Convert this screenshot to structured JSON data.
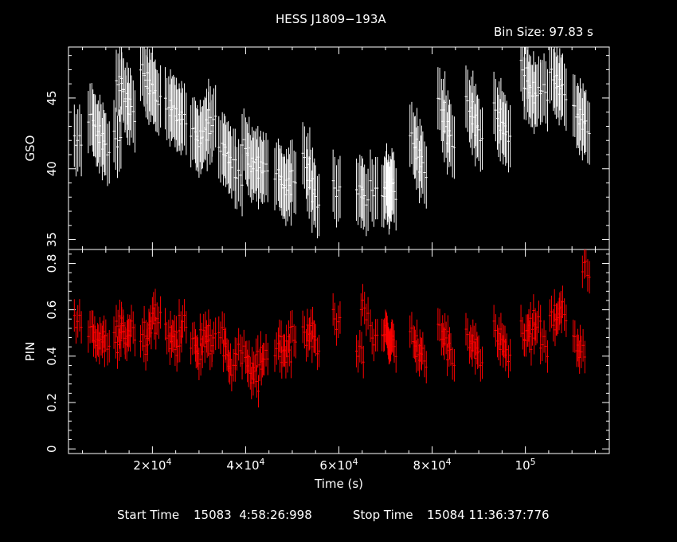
{
  "title": "HESS J1809−193A",
  "bin_size": "Bin Size: 97.83 s",
  "footer": {
    "start_label": "Start Time",
    "start_value": "15083  4:58:26:998",
    "stop_label": "Stop Time",
    "stop_value": "15084 11:36:37:776"
  },
  "colors": {
    "background": "#000000",
    "axes": "#ffffff",
    "gso": "#ffffff",
    "pin": "#ff0000"
  },
  "chart_data": [
    {
      "type": "scatter",
      "panel": "top",
      "ylabel": "GSO",
      "xlim": [
        2000,
        118000
      ],
      "ylim": [
        34.3,
        48.6
      ],
      "yticks": [
        35,
        40,
        45
      ],
      "grid": false,
      "series": [
        {
          "x": [
            4000,
            7000,
            8000,
            9000,
            10000,
            12500,
            13000,
            13800,
            14500,
            15500,
            18200,
            19000,
            20000,
            21000,
            23500,
            24500,
            25500,
            26500,
            29000,
            30000,
            31000,
            32000,
            32800,
            35000,
            36000,
            37000,
            38500,
            40000,
            41000,
            42000,
            43000,
            44000,
            47000,
            48000,
            49000,
            50000,
            53000,
            54000,
            55000,
            59500,
            64500,
            65500,
            67500,
            70000,
            70500,
            71000,
            71500,
            76000,
            77000,
            78000,
            82000,
            83000,
            84000,
            88000,
            89000,
            90000,
            94000,
            95000,
            96000,
            99800,
            100500,
            101500,
            102500,
            104000,
            106000,
            107000,
            108000,
            111000,
            112000,
            113000
          ],
          "y": [
            42.0,
            43.5,
            42.8,
            42.2,
            41.5,
            42.0,
            46.2,
            45.5,
            44.8,
            44.0,
            46.8,
            46.0,
            45.5,
            45.0,
            44.5,
            44.0,
            43.8,
            43.5,
            42.5,
            42.0,
            42.5,
            43.0,
            43.5,
            41.5,
            41.0,
            40.5,
            39.5,
            41.5,
            40.5,
            40.0,
            40.3,
            40.0,
            39.5,
            39.0,
            38.5,
            39.5,
            40.5,
            39.0,
            37.8,
            38.5,
            38.5,
            38.0,
            38.5,
            38.2,
            38.5,
            39.0,
            38.5,
            42.0,
            41.0,
            40.0,
            44.5,
            43.0,
            42.0,
            44.5,
            43.5,
            42.5,
            44.0,
            43.0,
            42.5,
            47.0,
            45.8,
            45.2,
            45.5,
            45.5,
            46.5,
            46.0,
            45.5,
            44.0,
            43.5,
            43.0
          ]
        }
      ]
    },
    {
      "type": "scatter",
      "panel": "bottom",
      "ylabel": "PIN",
      "xlabel": "Time (s)",
      "xlim": [
        2000,
        118000
      ],
      "ylim": [
        -0.02,
        0.86
      ],
      "yticks": [
        "0",
        "0.2",
        "0.4",
        "0.6",
        "0.8"
      ],
      "xticks": [
        {
          "value": 20000,
          "mantissa": "2×10",
          "exp": "4"
        },
        {
          "value": 40000,
          "mantissa": "4×10",
          "exp": "4"
        },
        {
          "value": 60000,
          "mantissa": "6×10",
          "exp": "4"
        },
        {
          "value": 80000,
          "mantissa": "8×10",
          "exp": "4"
        },
        {
          "value": 100000,
          "mantissa": "10",
          "exp": "5"
        }
      ],
      "grid": false,
      "series": [
        {
          "x": [
            4000,
            7000,
            8000,
            9000,
            10000,
            12500,
            13000,
            13800,
            14500,
            15500,
            18200,
            19000,
            20000,
            21000,
            23500,
            24500,
            25500,
            26500,
            29000,
            30000,
            31000,
            32000,
            32800,
            35000,
            36000,
            37000,
            38500,
            40000,
            41000,
            42000,
            43000,
            44000,
            47000,
            48000,
            49000,
            50000,
            53000,
            54000,
            55000,
            59500,
            64500,
            65500,
            67500,
            70000,
            70500,
            71000,
            71500,
            76000,
            77000,
            78000,
            82000,
            83000,
            84000,
            88000,
            89000,
            90000,
            94000,
            95000,
            96000,
            99800,
            100500,
            101500,
            102500,
            104000,
            106000,
            107000,
            108000,
            111000,
            112000,
            113000
          ],
          "y": [
            0.55,
            0.5,
            0.48,
            0.46,
            0.47,
            0.45,
            0.55,
            0.5,
            0.48,
            0.52,
            0.45,
            0.5,
            0.55,
            0.58,
            0.5,
            0.45,
            0.47,
            0.55,
            0.45,
            0.4,
            0.5,
            0.45,
            0.48,
            0.5,
            0.4,
            0.35,
            0.42,
            0.4,
            0.35,
            0.3,
            0.38,
            0.4,
            0.42,
            0.45,
            0.4,
            0.5,
            0.48,
            0.52,
            0.45,
            0.55,
            0.42,
            0.6,
            0.48,
            0.5,
            0.48,
            0.47,
            0.45,
            0.48,
            0.42,
            0.4,
            0.5,
            0.48,
            0.4,
            0.47,
            0.45,
            0.4,
            0.5,
            0.45,
            0.42,
            0.5,
            0.48,
            0.52,
            0.55,
            0.45,
            0.55,
            0.58,
            0.6,
            0.45,
            0.42,
            0.78
          ]
        }
      ]
    }
  ]
}
